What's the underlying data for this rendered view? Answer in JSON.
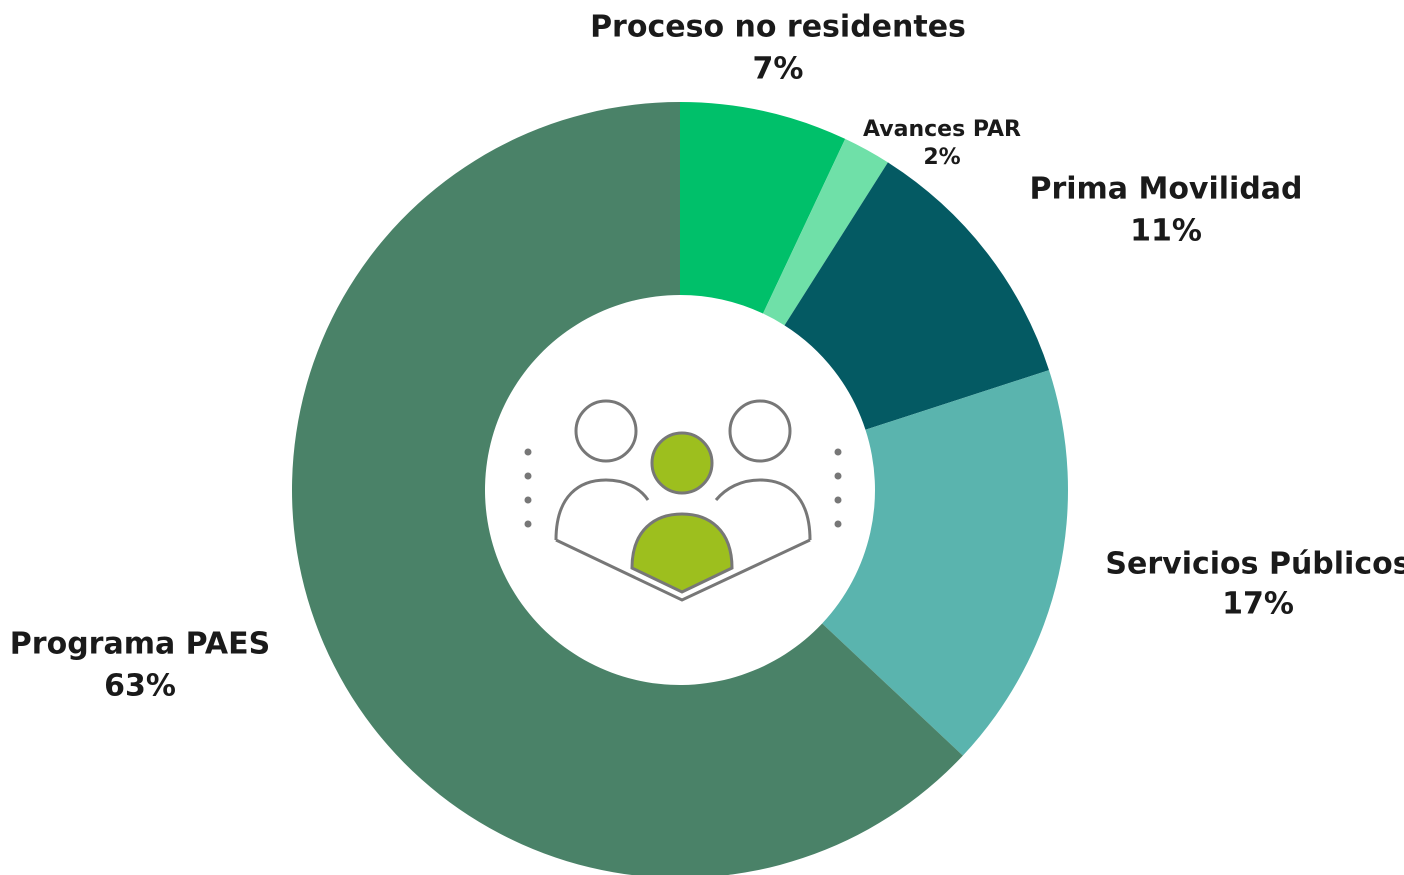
{
  "chart_data": {
    "type": "donut",
    "categories": [
      "Proceso no residentes",
      "Avances PAR",
      "Prima Movilidad",
      "Servicios Públicos",
      "Programa PAES"
    ],
    "values": [
      7,
      2,
      11,
      17,
      63
    ],
    "value_labels": [
      "7%",
      "2%",
      "11%",
      "17%",
      "63%"
    ],
    "colors": [
      "#00c06a",
      "#6fe0a8",
      "#045a63",
      "#5ab4ae",
      "#4a8268"
    ]
  }
}
